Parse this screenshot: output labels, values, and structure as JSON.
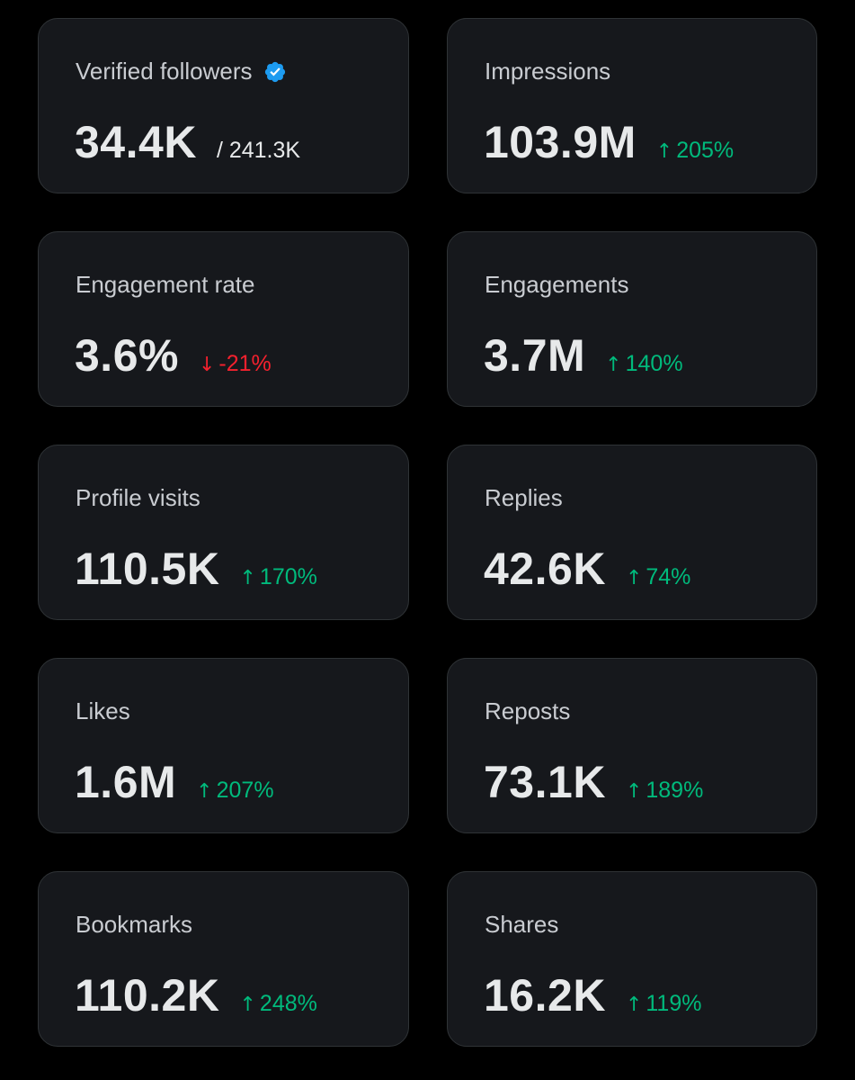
{
  "colors": {
    "background": "#000000",
    "card": "#16181c",
    "card_border": "#2f3336",
    "label": "#c9ccd1",
    "value": "#e7e9ea",
    "positive": "#00ba7c",
    "negative": "#f4212e",
    "verified_badge": "#1d9bf0"
  },
  "metrics": [
    {
      "label": "Verified followers",
      "icon": "verified-badge-icon",
      "value": "34.4K",
      "total": "/ 241.3K"
    },
    {
      "label": "Impressions",
      "value": "103.9M",
      "change": "205%",
      "direction": "up"
    },
    {
      "label": "Engagement rate",
      "value": "3.6%",
      "change": "-21%",
      "direction": "down"
    },
    {
      "label": "Engagements",
      "value": "3.7M",
      "change": "140%",
      "direction": "up"
    },
    {
      "label": "Profile visits",
      "value": "110.5K",
      "change": "170%",
      "direction": "up"
    },
    {
      "label": "Replies",
      "value": "42.6K",
      "change": "74%",
      "direction": "up"
    },
    {
      "label": "Likes",
      "value": "1.6M",
      "change": "207%",
      "direction": "up"
    },
    {
      "label": "Reposts",
      "value": "73.1K",
      "change": "189%",
      "direction": "up"
    },
    {
      "label": "Bookmarks",
      "value": "110.2K",
      "change": "248%",
      "direction": "up"
    },
    {
      "label": "Shares",
      "value": "16.2K",
      "change": "119%",
      "direction": "up"
    }
  ]
}
